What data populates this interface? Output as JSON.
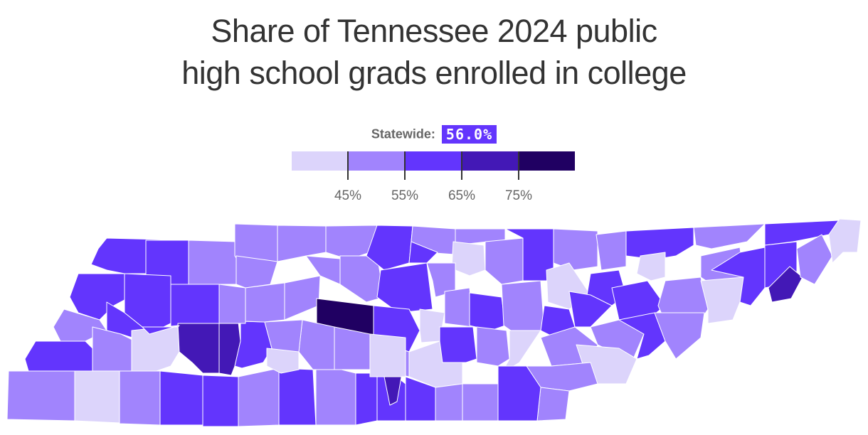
{
  "title": {
    "line1": "Share of Tennessee 2024 public",
    "line2": "high school grads enrolled in college"
  },
  "statewide": {
    "label": "Statewide:",
    "value": "56.0%"
  },
  "legend": {
    "colors": [
      "#dcd4fb",
      "#a184fd",
      "#6335fd",
      "#4318b6",
      "#200062"
    ],
    "ticks": [
      "45%",
      "55%",
      "65%",
      "75%"
    ]
  },
  "chart_data": {
    "type": "choropleth",
    "title": "Share of Tennessee 2024 public high school grads enrolled in college",
    "region": "Tennessee counties",
    "statewide_value": 56.0,
    "bins": [
      {
        "range": "<45%",
        "color": "#dcd4fb"
      },
      {
        "range": "45–55%",
        "color": "#a184fd"
      },
      {
        "range": "55–65%",
        "color": "#6335fd"
      },
      {
        "range": "65–75%",
        "color": "#4318b6"
      },
      {
        "range": ">75%",
        "color": "#200062"
      }
    ],
    "legend_ticks": [
      "45%",
      "55%",
      "65%",
      "75%"
    ],
    "legend_position": "top-center"
  },
  "counties": [
    {
      "p": "150,35 265,38 265,100 205,100 205,85 175,85 150,80 128,72 138,50",
      "b": 2
    },
    {
      "p": "205,38 265,38 265,100 205,100",
      "b": 2
    },
    {
      "p": "265,38 332,40 332,100 265,100",
      "b": 1
    },
    {
      "p": "110,85 175,85 175,122 160,130 140,150 110,140 98,118",
      "b": 2
    },
    {
      "p": "175,85 240,88 240,155 220,165 200,160 175,140 175,122",
      "b": 2
    },
    {
      "p": "240,100 308,100 308,160 240,160",
      "b": 2
    },
    {
      "p": "90,135 140,150 150,165 120,180 85,180 75,160",
      "b": 1
    },
    {
      "p": "150,125 175,140 200,160 210,170 195,178 170,170 150,165",
      "b": 2
    },
    {
      "p": "130,160 150,165 170,170 190,180 185,225 130,225 130,180",
      "b": 1
    },
    {
      "p": "50,180 85,180 120,180 130,190 130,225 40,222 35,205",
      "b": 2
    },
    {
      "p": "185,165 250,158 252,195 240,215 220,222 185,222",
      "b": 0
    },
    {
      "p": "250,155 308,155 308,225 285,225 270,210 252,195",
      "b": 3
    },
    {
      "p": "308,152 335,153 338,180 330,215 325,228 308,225",
      "b": 3
    },
    {
      "p": "338,152 372,153 382,190 370,210 340,218 330,215 338,180",
      "b": 2
    },
    {
      "p": "12,222 105,222 105,292 10,290",
      "b": 1
    },
    {
      "p": "105,222 168,222 168,295 105,292",
      "b": 0
    },
    {
      "p": "168,222 225,222 225,298 168,296",
      "b": 1
    },
    {
      "p": "225,222 285,228 285,298 225,298",
      "b": 2
    },
    {
      "p": "285,228 335,230 335,300 285,300",
      "b": 2
    },
    {
      "p": "335,230 392,218 400,240 392,298 335,300",
      "b": 1
    },
    {
      "p": "392,218 440,220 444,298 392,298",
      "b": 2
    },
    {
      "p": "330,15 390,17 390,68 340,75 330,60",
      "b": 1
    },
    {
      "p": "390,17 458,18 458,55 430,60 390,68",
      "b": 1
    },
    {
      "p": "332,60 390,68 380,100 345,105 332,100",
      "b": 1
    },
    {
      "p": "308,100 345,105 345,155 308,155",
      "b": 1
    },
    {
      "p": "345,105 400,98 400,150 372,153 345,152",
      "b": 1
    },
    {
      "p": "400,98 450,88 448,130 400,150",
      "b": 1
    },
    {
      "p": "458,18 530,17 520,55 490,65 458,55",
      "b": 1
    },
    {
      "p": "430,60 490,65 478,100 450,88",
      "b": 1
    },
    {
      "p": "478,60 530,60 540,118 515,125 478,100",
      "b": 1
    },
    {
      "p": "530,17 580,18 575,70 540,80 515,60",
      "b": 2
    },
    {
      "p": "445,120 525,130 525,178 505,170 445,155",
      "b": 4
    },
    {
      "p": "535,80 600,70 608,135 560,140 530,118",
      "b": 2
    },
    {
      "p": "580,18 640,22 640,58 598,55 578,40",
      "b": 1
    },
    {
      "p": "578,40 615,55 600,70 575,70",
      "b": 2
    },
    {
      "p": "640,22 710,22 710,45 685,40 640,45",
      "b": 1
    },
    {
      "p": "637,40 680,45 682,80 660,88 635,78",
      "b": 0
    },
    {
      "p": "600,70 640,70 640,110 612,118 608,95",
      "b": 1
    },
    {
      "p": "682,40 735,35 735,95 705,100 682,80",
      "b": 1
    },
    {
      "p": "710,22 778,22 778,95 735,95 735,35",
      "b": 2
    },
    {
      "p": "525,130 575,135 590,165 575,195 525,178",
      "b": 2
    },
    {
      "p": "590,135 625,140 618,180 592,182 590,165",
      "b": 0
    },
    {
      "p": "625,110 660,105 665,160 625,155",
      "b": 1
    },
    {
      "p": "660,112 705,118 710,158 690,165 660,158",
      "b": 2
    },
    {
      "p": "705,100 760,95 765,165 725,170 708,158",
      "b": 1
    },
    {
      "p": "778,22 840,25 840,75 805,80 778,70",
      "b": 1
    },
    {
      "p": "768,80 800,70 830,115 800,135 770,125",
      "b": 0
    },
    {
      "p": "838,30 880,25 880,75 845,80",
      "b": 1
    },
    {
      "p": "880,25 975,20 975,45 950,60 920,65 880,60",
      "b": 2
    },
    {
      "p": "900,60 935,55 935,90 915,95 895,85",
      "b": 0
    },
    {
      "p": "830,85 870,80 880,115 860,130 825,115",
      "b": 2
    },
    {
      "p": "860,105 910,95 935,130 910,150 870,150",
      "b": 2
    },
    {
      "p": "935,95 985,90 995,135 975,165 940,165 925,130",
      "b": 1
    },
    {
      "p": "975,20 1075,15 1050,40 1000,50 978,45",
      "b": 1
    },
    {
      "p": "985,60 1040,48 1045,90 1000,100 985,90",
      "b": 1
    },
    {
      "p": "985,95 1045,90 1040,125 1030,150 995,155 995,135",
      "b": 0
    },
    {
      "p": "1000,80 1040,55 1075,48 1075,105 1055,130 1040,125 1045,90",
      "b": 2
    },
    {
      "p": "1075,15 1180,10 1165,30 1115,40 1075,45",
      "b": 2
    },
    {
      "p": "1075,45 1120,40 1120,85 1100,100 1075,105",
      "b": 2
    },
    {
      "p": "1080,105 1110,75 1128,90 1112,120 1085,125",
      "b": 3
    },
    {
      "p": "1120,50 1155,30 1170,60 1145,100 1125,90",
      "b": 1
    },
    {
      "p": "1165,30 1180,8 1210,10 1205,55 1185,55 1170,70",
      "b": 0
    },
    {
      "p": "575,195 618,180 650,195 650,240 612,245 575,230",
      "b": 0
    },
    {
      "p": "525,178 575,195 575,230 550,225 525,225",
      "b": 1
    },
    {
      "p": "618,160 665,160 670,205 655,210 622,210 618,180",
      "b": 2
    },
    {
      "p": "670,160 712,165 716,205 700,215 670,210",
      "b": 1
    },
    {
      "p": "716,165 760,165 730,210 705,225 716,205",
      "b": 0
    },
    {
      "p": "765,130 800,135 808,160 780,175 760,165",
      "b": 2
    },
    {
      "p": "800,110 830,115 860,130 830,160 808,160",
      "b": 2
    },
    {
      "p": "830,160 870,150 905,170 890,205 870,200 840,185",
      "b": 1
    },
    {
      "p": "870,150 920,140 935,180 912,200 895,205 905,170",
      "b": 2
    },
    {
      "p": "920,140 990,140 985,175 950,205 935,180",
      "b": 1
    },
    {
      "p": "760,175 808,160 840,185 830,210 775,215",
      "b": 1
    },
    {
      "p": "810,185 870,190 895,205 880,240 840,240 820,215",
      "b": 0
    },
    {
      "p": "740,215 775,215 830,210 840,240 800,250 760,245",
      "b": 1
    },
    {
      "p": "760,245 800,250 795,290 755,292",
      "b": 1
    },
    {
      "p": "700,215 740,215 760,245 755,292 700,292",
      "b": 2
    },
    {
      "p": "650,240 700,240 700,292 650,292",
      "b": 1
    },
    {
      "p": "612,245 650,240 650,292 612,292",
      "b": 1
    },
    {
      "p": "570,230 612,245 612,292 570,292",
      "b": 2
    },
    {
      "p": "530,225 555,228 570,240 570,292 530,292",
      "b": 2
    },
    {
      "p": "540,230 565,225 558,265 548,270",
      "b": 3
    },
    {
      "p": "444,220 480,220 500,225 500,298 444,298",
      "b": 1
    },
    {
      "p": "500,225 530,225 530,292 500,298",
      "b": 2
    },
    {
      "p": "520,170 570,175 570,230 520,230",
      "b": 0
    },
    {
      "p": "470,160 520,170 520,220 470,220",
      "b": 1
    },
    {
      "p": "425,150 470,160 470,220 440,220 420,195",
      "b": 1
    },
    {
      "p": "372,153 425,150 420,195 400,215 392,218 382,190",
      "b": 1
    },
    {
      "p": "375,190 420,195 420,220 395,225 375,215",
      "b": 0
    },
    {
      "p": "200,160 210,170 252,158 250,160",
      "b": 2
    }
  ]
}
